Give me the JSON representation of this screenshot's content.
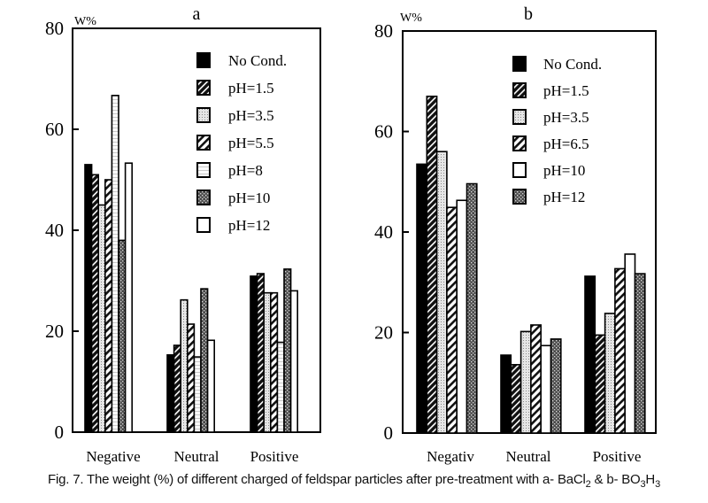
{
  "caption": {
    "prefix": "Fig. 7. The weight (%) of different charged of feldspar particles after pre-treatment with a- BaCl",
    "sub1": "2",
    "mid": " & b- BO",
    "sub2": "3",
    "h": "H",
    "sub3": "3"
  },
  "chart_data": [
    {
      "type": "bar",
      "title": "a",
      "ylabel": "W%",
      "xlabel": "",
      "ylim": [
        0,
        80
      ],
      "yticks": [
        0,
        20,
        40,
        60,
        80
      ],
      "grid": false,
      "legend_position": "top-right",
      "categories": [
        "Negative",
        "Neutral",
        "Positive"
      ],
      "series": [
        {
          "name": "No Cond.",
          "pattern": "solid-black",
          "values": [
            53,
            15.3,
            30.9
          ]
        },
        {
          "name": "pH=1.5",
          "pattern": "dense-diagonal",
          "values": [
            51,
            17.2,
            31.4
          ]
        },
        {
          "name": "pH=3.5",
          "pattern": "light-dots",
          "values": [
            45,
            26.2,
            27.6
          ]
        },
        {
          "name": "pH=5.5",
          "pattern": "wide-diagonal",
          "values": [
            50,
            21.4,
            27.6
          ]
        },
        {
          "name": "pH=8",
          "pattern": "light-lines",
          "values": [
            66.7,
            14.9,
            17.8
          ]
        },
        {
          "name": "pH=10",
          "pattern": "dark-speckle",
          "values": [
            38,
            28.4,
            32.3
          ]
        },
        {
          "name": "pH=12",
          "pattern": "white",
          "values": [
            53.3,
            18.2,
            28
          ]
        }
      ]
    },
    {
      "type": "bar",
      "title": "b",
      "ylabel": "W%",
      "xlabel": "",
      "ylim": [
        0,
        80
      ],
      "yticks": [
        0,
        20,
        40,
        60,
        80
      ],
      "grid": false,
      "legend_position": "top-right",
      "categories": [
        "Negativ",
        "Neutral",
        "Positive"
      ],
      "series": [
        {
          "name": "No Cond.",
          "pattern": "solid-black",
          "values": [
            53.5,
            15.5,
            31.2
          ]
        },
        {
          "name": "pH=1.5",
          "pattern": "dense-diagonal",
          "values": [
            67,
            13.6,
            19.5
          ]
        },
        {
          "name": "pH=3.5",
          "pattern": "light-dots",
          "values": [
            56,
            20.2,
            23.8
          ]
        },
        {
          "name": "pH=6.5",
          "pattern": "wide-diagonal",
          "values": [
            44.9,
            21.5,
            32.7
          ]
        },
        {
          "name": "pH=10",
          "pattern": "white",
          "values": [
            46.3,
            17.4,
            35.6
          ]
        },
        {
          "name": "pH=12",
          "pattern": "dark-speckle",
          "values": [
            49.6,
            18.7,
            31.7
          ]
        }
      ]
    }
  ]
}
